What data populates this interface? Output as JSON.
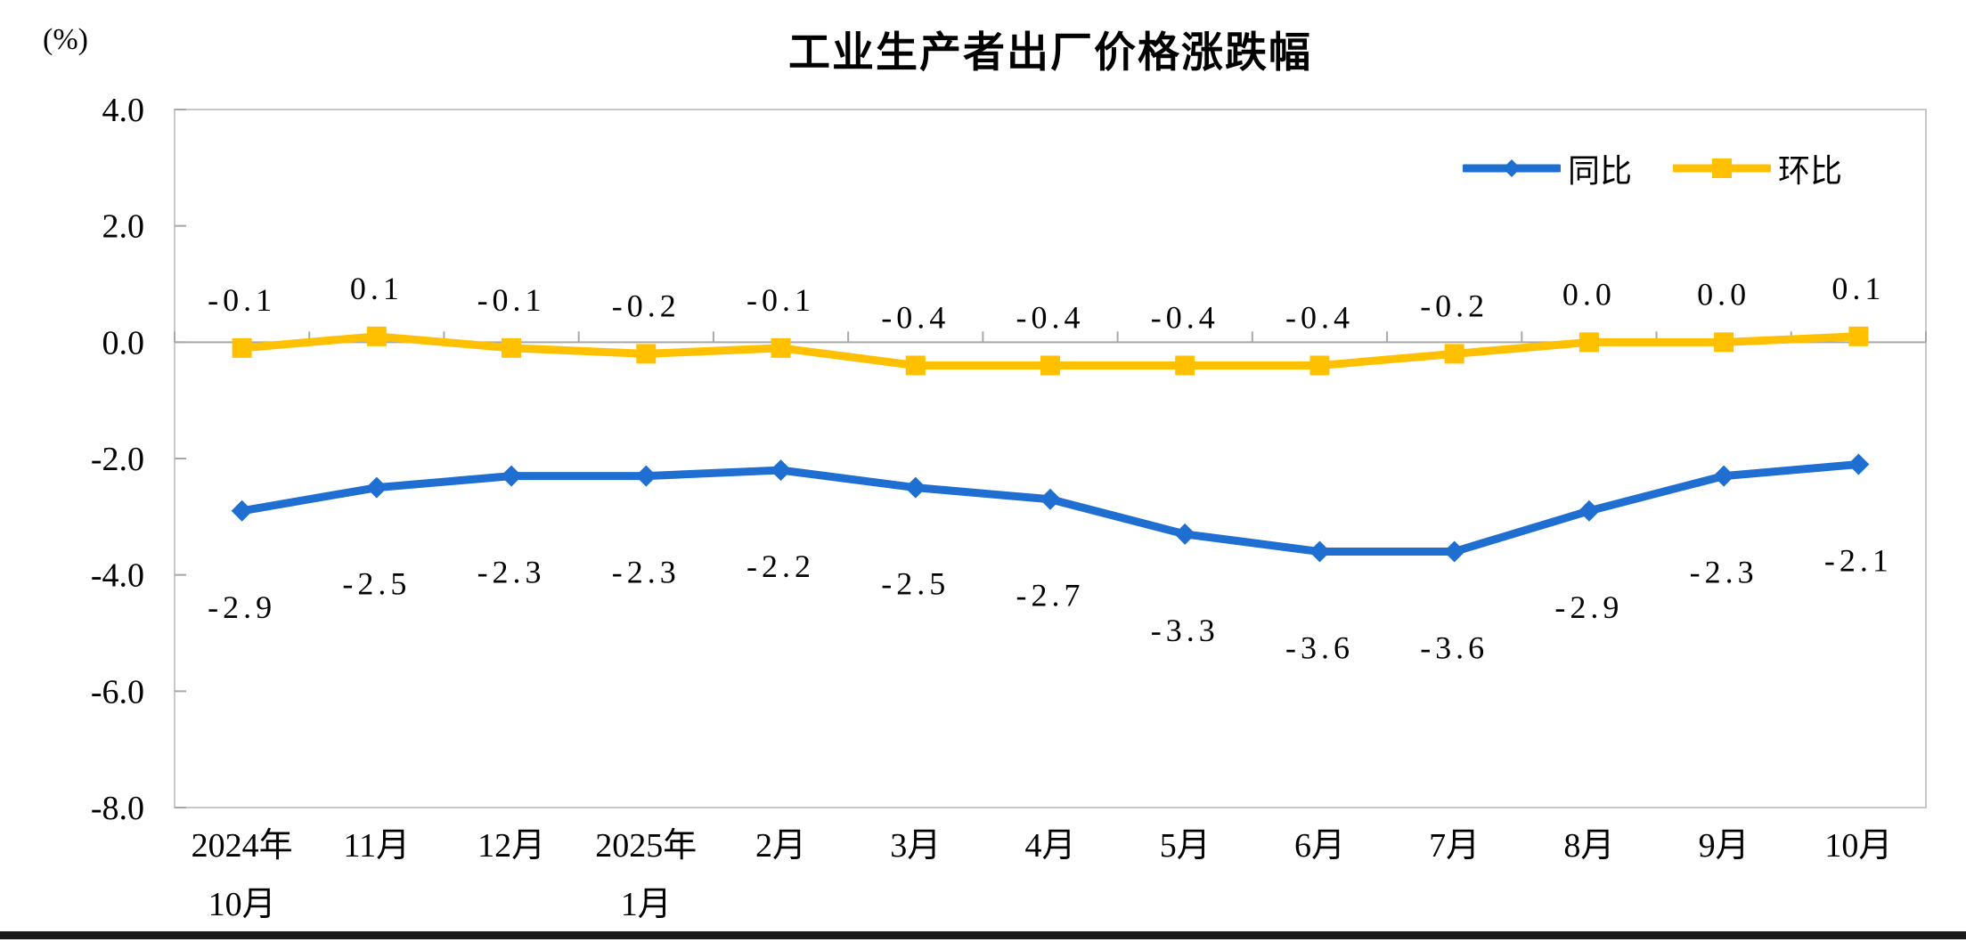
{
  "page": {
    "background": "#ffffff",
    "bottom_bar_color": "#1b1b1b"
  },
  "chart_data": {
    "type": "line",
    "title": "工业生产者出厂价格涨跌幅",
    "unit_label": "(%)",
    "legend_position": "top-right-inside",
    "grid": "zero-line-and-plot-border-only",
    "ylim": [
      -8.0,
      4.0
    ],
    "y_ticks": [
      "4.0",
      "2.0",
      "0.0",
      "-2.0",
      "-4.0",
      "-6.0",
      "-8.0"
    ],
    "categories": [
      [
        "2024年",
        "10月"
      ],
      [
        "11月"
      ],
      [
        "12月"
      ],
      [
        "2025年",
        "1月"
      ],
      [
        "2月"
      ],
      [
        "3月"
      ],
      [
        "4月"
      ],
      [
        "5月"
      ],
      [
        "6月"
      ],
      [
        "7月"
      ],
      [
        "8月"
      ],
      [
        "9月"
      ],
      [
        "10月"
      ]
    ],
    "series": [
      {
        "name": "同比",
        "color": "#1E6FD1",
        "marker": "diamond",
        "label_side": "below",
        "values": [
          -2.9,
          -2.5,
          -2.3,
          -2.3,
          -2.2,
          -2.5,
          -2.7,
          -3.3,
          -3.6,
          -3.6,
          -2.9,
          -2.3,
          -2.1
        ],
        "labels": [
          "-2.9",
          "-2.5",
          "-2.3",
          "-2.3",
          "-2.2",
          "-2.5",
          "-2.7",
          "-3.3",
          "-3.6",
          "-3.6",
          "-2.9",
          "-2.3",
          "-2.1"
        ]
      },
      {
        "name": "环比",
        "color": "#FFC000",
        "marker": "square",
        "label_side": "above",
        "values": [
          -0.1,
          0.1,
          -0.1,
          -0.2,
          -0.1,
          -0.4,
          -0.4,
          -0.4,
          -0.4,
          -0.2,
          0.0,
          0.0,
          0.1
        ],
        "labels": [
          "-0.1",
          "0.1",
          "-0.1",
          "-0.2",
          "-0.1",
          "-0.4",
          "-0.4",
          "-0.4",
          "-0.4",
          "-0.2",
          "0.0",
          "0.0",
          "0.1"
        ]
      }
    ],
    "axis_colors": {
      "plot_border": "#C8C8C8",
      "axis_line": "#A8A8A8"
    }
  }
}
